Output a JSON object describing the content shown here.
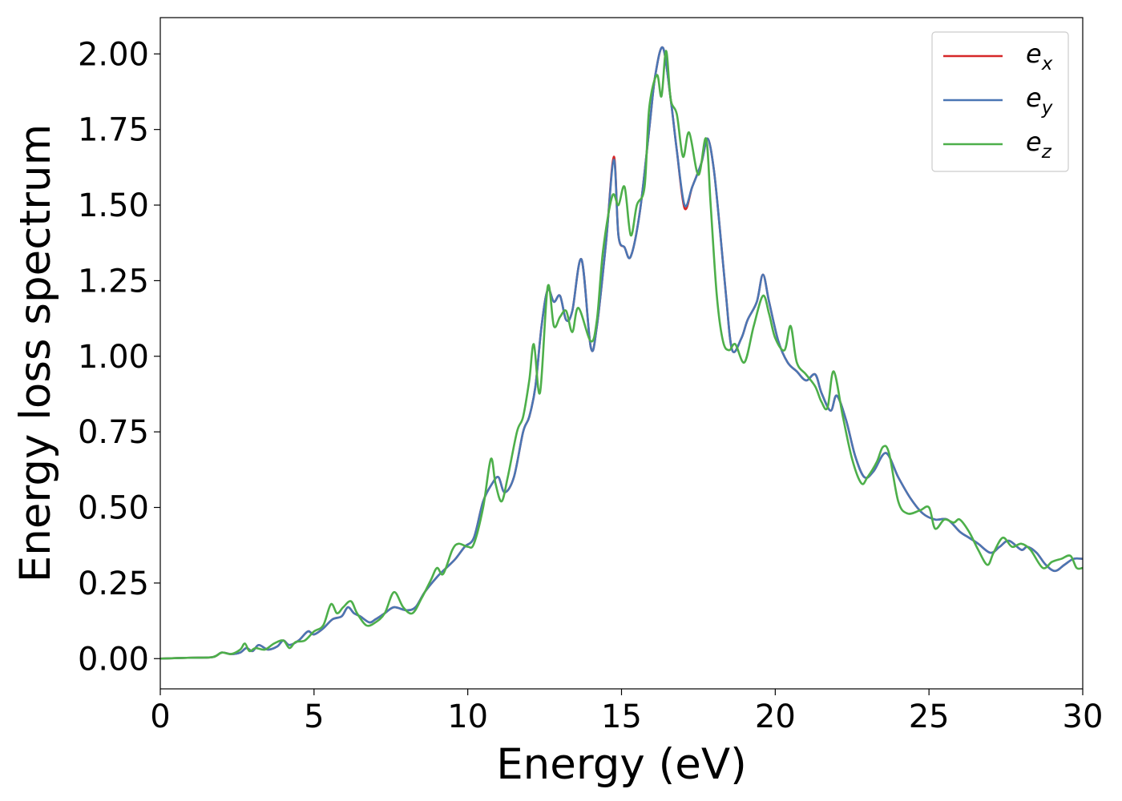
{
  "chart_data": {
    "type": "line",
    "title": "",
    "xlabel": "Energy (eV)",
    "ylabel": "Energy loss spectrum",
    "xlim": [
      0,
      30
    ],
    "ylim": [
      -0.1,
      2.12
    ],
    "xticks": [
      0,
      5,
      10,
      15,
      20,
      25,
      30
    ],
    "xtick_labels": [
      "0",
      "5",
      "10",
      "15",
      "20",
      "25",
      "30"
    ],
    "yticks": [
      0.0,
      0.25,
      0.5,
      0.75,
      1.0,
      1.25,
      1.5,
      1.75,
      2.0
    ],
    "ytick_labels": [
      "0.00",
      "0.25",
      "0.50",
      "0.75",
      "1.00",
      "1.25",
      "1.50",
      "1.75",
      "2.00"
    ],
    "grid": false,
    "legend_position": "top-right",
    "series": [
      {
        "name": "e_x",
        "label_base": "e",
        "label_sub": "x",
        "color": "#d62728",
        "x": [
          0,
          1,
          1.7,
          2,
          2.3,
          2.6,
          2.8,
          3.0,
          3.2,
          3.5,
          3.8,
          4.0,
          4.2,
          4.5,
          4.8,
          5.0,
          5.3,
          5.6,
          5.9,
          6.1,
          6.3,
          6.5,
          6.8,
          7.0,
          7.3,
          7.6,
          8.0,
          8.3,
          8.6,
          9.0,
          9.3,
          9.6,
          9.9,
          10.2,
          10.5,
          10.8,
          11.0,
          11.2,
          11.5,
          11.8,
          12.0,
          12.2,
          12.4,
          12.6,
          12.8,
          13.0,
          13.2,
          13.4,
          13.7,
          14.0,
          14.2,
          14.5,
          14.75,
          14.9,
          15.1,
          15.3,
          15.6,
          15.9,
          16.1,
          16.35,
          16.6,
          16.8,
          17.05,
          17.3,
          17.6,
          17.8,
          18.0,
          18.2,
          18.4,
          18.6,
          18.9,
          19.1,
          19.4,
          19.6,
          19.8,
          20.1,
          20.4,
          20.7,
          21.0,
          21.3,
          21.5,
          21.8,
          22.0,
          22.3,
          22.6,
          22.9,
          23.2,
          23.6,
          24.0,
          24.4,
          24.8,
          25.2,
          25.6,
          26.0,
          26.3,
          26.6,
          27.0,
          27.3,
          27.6,
          28.0,
          28.2,
          28.5,
          28.8,
          29.1,
          29.4,
          29.7,
          30.0
        ],
        "values": [
          0.0,
          0.003,
          0.005,
          0.02,
          0.015,
          0.02,
          0.035,
          0.025,
          0.045,
          0.03,
          0.04,
          0.06,
          0.045,
          0.06,
          0.09,
          0.08,
          0.1,
          0.13,
          0.14,
          0.17,
          0.15,
          0.14,
          0.12,
          0.13,
          0.15,
          0.17,
          0.16,
          0.17,
          0.22,
          0.27,
          0.3,
          0.33,
          0.37,
          0.4,
          0.52,
          0.58,
          0.6,
          0.55,
          0.6,
          0.75,
          0.8,
          0.9,
          1.1,
          1.22,
          1.18,
          1.2,
          1.12,
          1.15,
          1.32,
          1.03,
          1.1,
          1.38,
          1.66,
          1.4,
          1.36,
          1.33,
          1.48,
          1.75,
          1.93,
          2.02,
          1.85,
          1.68,
          1.49,
          1.56,
          1.64,
          1.72,
          1.62,
          1.42,
          1.2,
          1.02,
          1.06,
          1.12,
          1.18,
          1.27,
          1.18,
          1.05,
          0.98,
          0.95,
          0.92,
          0.94,
          0.88,
          0.82,
          0.87,
          0.79,
          0.67,
          0.6,
          0.62,
          0.68,
          0.6,
          0.53,
          0.48,
          0.46,
          0.46,
          0.42,
          0.4,
          0.38,
          0.35,
          0.37,
          0.39,
          0.36,
          0.37,
          0.35,
          0.31,
          0.29,
          0.31,
          0.33,
          0.33
        ]
      },
      {
        "name": "e_y",
        "label_base": "e",
        "label_sub": "y",
        "color": "#4a76b4",
        "x": [
          0,
          1,
          1.7,
          2,
          2.3,
          2.6,
          2.8,
          3.0,
          3.2,
          3.5,
          3.8,
          4.0,
          4.2,
          4.5,
          4.8,
          5.0,
          5.3,
          5.6,
          5.9,
          6.1,
          6.3,
          6.5,
          6.8,
          7.0,
          7.3,
          7.6,
          8.0,
          8.3,
          8.6,
          9.0,
          9.3,
          9.6,
          9.9,
          10.2,
          10.5,
          10.8,
          11.0,
          11.2,
          11.5,
          11.8,
          12.0,
          12.2,
          12.4,
          12.6,
          12.8,
          13.0,
          13.2,
          13.4,
          13.7,
          14.0,
          14.2,
          14.5,
          14.75,
          14.9,
          15.1,
          15.3,
          15.6,
          15.9,
          16.1,
          16.35,
          16.6,
          16.8,
          17.05,
          17.3,
          17.6,
          17.8,
          18.0,
          18.2,
          18.4,
          18.6,
          18.9,
          19.1,
          19.4,
          19.6,
          19.8,
          20.1,
          20.4,
          20.7,
          21.0,
          21.3,
          21.5,
          21.8,
          22.0,
          22.3,
          22.6,
          22.9,
          23.2,
          23.6,
          24.0,
          24.4,
          24.8,
          25.2,
          25.6,
          26.0,
          26.3,
          26.6,
          27.0,
          27.3,
          27.6,
          28.0,
          28.2,
          28.5,
          28.8,
          29.1,
          29.4,
          29.7,
          30.0
        ],
        "values": [
          0.0,
          0.003,
          0.005,
          0.02,
          0.015,
          0.02,
          0.035,
          0.025,
          0.045,
          0.03,
          0.04,
          0.06,
          0.045,
          0.06,
          0.09,
          0.08,
          0.1,
          0.13,
          0.14,
          0.17,
          0.15,
          0.14,
          0.12,
          0.13,
          0.15,
          0.17,
          0.16,
          0.17,
          0.22,
          0.27,
          0.3,
          0.33,
          0.37,
          0.4,
          0.52,
          0.58,
          0.6,
          0.55,
          0.6,
          0.75,
          0.8,
          0.9,
          1.1,
          1.22,
          1.18,
          1.2,
          1.12,
          1.15,
          1.32,
          1.03,
          1.1,
          1.38,
          1.65,
          1.4,
          1.36,
          1.33,
          1.48,
          1.75,
          1.93,
          2.02,
          1.85,
          1.68,
          1.5,
          1.56,
          1.64,
          1.72,
          1.62,
          1.42,
          1.2,
          1.02,
          1.06,
          1.12,
          1.18,
          1.27,
          1.18,
          1.05,
          0.98,
          0.95,
          0.92,
          0.94,
          0.88,
          0.82,
          0.87,
          0.79,
          0.67,
          0.6,
          0.62,
          0.68,
          0.6,
          0.53,
          0.48,
          0.46,
          0.46,
          0.42,
          0.4,
          0.38,
          0.35,
          0.37,
          0.39,
          0.36,
          0.37,
          0.35,
          0.31,
          0.29,
          0.31,
          0.33,
          0.33
        ]
      },
      {
        "name": "e_z",
        "label_base": "e",
        "label_sub": "z",
        "color": "#4daf4a",
        "x": [
          0,
          1,
          1.7,
          2,
          2.3,
          2.6,
          2.75,
          2.9,
          3.1,
          3.4,
          3.7,
          4.0,
          4.2,
          4.4,
          4.7,
          5.0,
          5.3,
          5.55,
          5.75,
          5.95,
          6.2,
          6.4,
          6.7,
          7.0,
          7.3,
          7.6,
          7.9,
          8.2,
          8.5,
          8.8,
          9.0,
          9.2,
          9.5,
          9.7,
          10.0,
          10.2,
          10.5,
          10.75,
          10.9,
          11.1,
          11.3,
          11.6,
          11.8,
          12.0,
          12.15,
          12.35,
          12.6,
          12.8,
          13.0,
          13.2,
          13.4,
          13.6,
          14.0,
          14.2,
          14.4,
          14.7,
          14.9,
          15.1,
          15.3,
          15.5,
          15.75,
          15.9,
          16.15,
          16.3,
          16.45,
          16.6,
          16.8,
          17.0,
          17.2,
          17.5,
          17.75,
          17.9,
          18.1,
          18.3,
          18.5,
          18.7,
          19.0,
          19.3,
          19.6,
          19.8,
          20.0,
          20.3,
          20.5,
          20.7,
          21.0,
          21.3,
          21.5,
          21.7,
          21.9,
          22.2,
          22.5,
          22.8,
          23.0,
          23.3,
          23.5,
          23.7,
          24.0,
          24.3,
          24.7,
          25.0,
          25.2,
          25.5,
          25.8,
          26.0,
          26.3,
          26.6,
          26.9,
          27.1,
          27.4,
          27.7,
          28.0,
          28.3,
          28.7,
          29.0,
          29.3,
          29.6,
          29.8,
          30.0
        ],
        "values": [
          0.0,
          0.003,
          0.005,
          0.02,
          0.015,
          0.03,
          0.05,
          0.025,
          0.035,
          0.03,
          0.05,
          0.06,
          0.035,
          0.055,
          0.06,
          0.09,
          0.11,
          0.18,
          0.15,
          0.17,
          0.19,
          0.15,
          0.11,
          0.12,
          0.15,
          0.22,
          0.17,
          0.15,
          0.2,
          0.26,
          0.3,
          0.28,
          0.36,
          0.38,
          0.37,
          0.38,
          0.5,
          0.66,
          0.58,
          0.52,
          0.6,
          0.75,
          0.8,
          0.92,
          1.04,
          0.88,
          1.23,
          1.1,
          1.13,
          1.15,
          1.08,
          1.16,
          1.05,
          1.12,
          1.35,
          1.53,
          1.5,
          1.56,
          1.4,
          1.5,
          1.56,
          1.82,
          1.93,
          1.86,
          2.01,
          1.85,
          1.8,
          1.66,
          1.74,
          1.6,
          1.72,
          1.5,
          1.2,
          1.05,
          1.02,
          1.04,
          0.98,
          1.1,
          1.2,
          1.14,
          1.06,
          1.02,
          1.1,
          0.98,
          0.94,
          0.9,
          0.85,
          0.83,
          0.95,
          0.8,
          0.66,
          0.58,
          0.6,
          0.65,
          0.7,
          0.68,
          0.52,
          0.48,
          0.49,
          0.5,
          0.43,
          0.46,
          0.45,
          0.46,
          0.42,
          0.36,
          0.31,
          0.35,
          0.4,
          0.37,
          0.38,
          0.36,
          0.3,
          0.32,
          0.33,
          0.34,
          0.3,
          0.3
        ]
      }
    ]
  }
}
